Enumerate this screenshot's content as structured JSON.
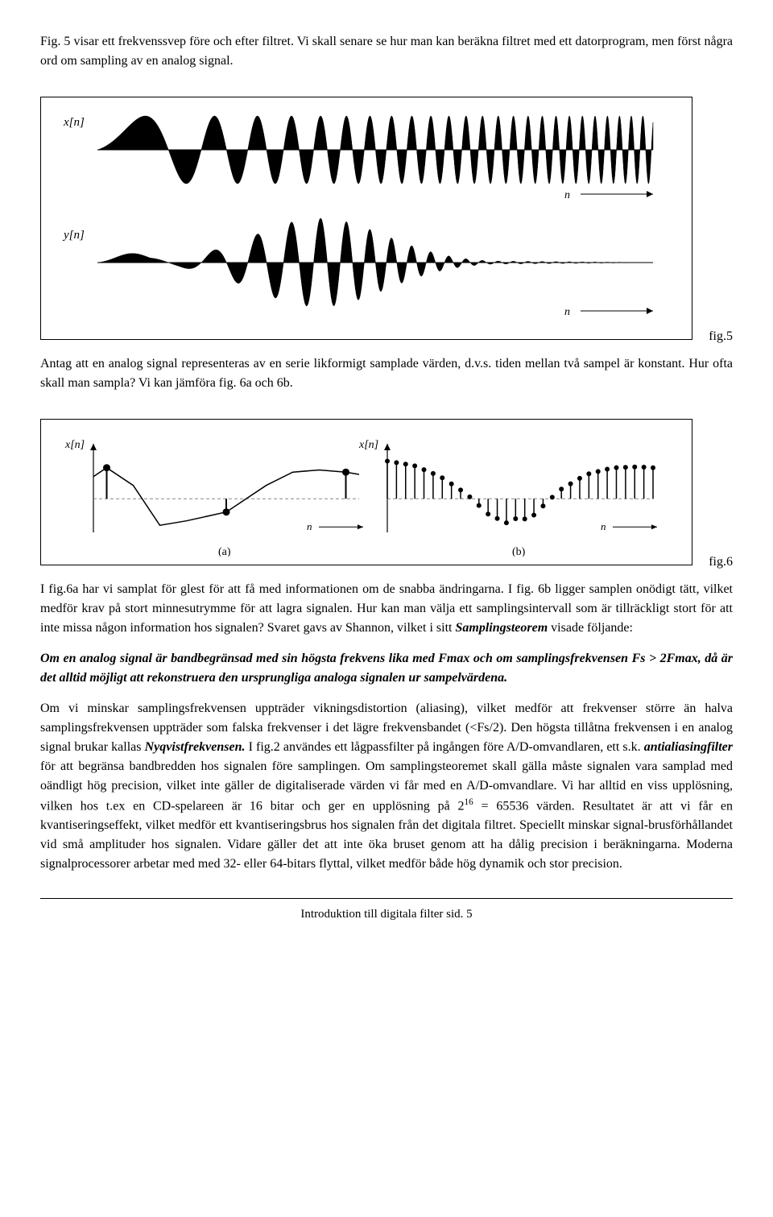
{
  "para1": "Fig. 5 visar ett frekvenssvep före och efter filtret. Vi skall senare se hur man kan beräkna filtret med ett datorprogram, men först några ord om sampling av en analog signal.",
  "fig5": {
    "label_top": "x[n]",
    "label_bottom": "y[n]",
    "axis_label": "n",
    "caption": "fig.5",
    "sweep_top": {
      "cycles": 46,
      "min_freq": 0.02,
      "max_freq": 0.45,
      "amplitude": 1.0,
      "stroke": "#000000",
      "fill": "#000000"
    },
    "sweep_bottom": {
      "cycles": 46,
      "min_freq": 0.02,
      "max_freq": 0.45,
      "envelope_center": 0.4,
      "envelope_width": 0.25,
      "stroke": "#000000",
      "fill": "#000000"
    }
  },
  "para2": "Antag att en analog signal representeras av en serie likformigt samplade värden, d.v.s. tiden mellan två sampel är konstant. Hur ofta skall man sampla? Vi kan jämföra fig. 6a och 6b.",
  "fig6": {
    "label_a": "x[n]",
    "label_b": "x[n]",
    "sub_a": "(a)",
    "sub_b": "(b)",
    "axis_label": "n",
    "caption": "fig.6",
    "panel_a": {
      "samples_x": [
        0.05,
        0.5,
        0.95
      ],
      "samples_y": [
        0.7,
        -0.3,
        0.6
      ],
      "curve": [
        [
          0,
          0.5
        ],
        [
          0.05,
          0.7
        ],
        [
          0.15,
          0.3
        ],
        [
          0.25,
          -0.6
        ],
        [
          0.35,
          -0.5
        ],
        [
          0.5,
          -0.3
        ],
        [
          0.55,
          -0.1
        ],
        [
          0.65,
          0.3
        ],
        [
          0.75,
          0.6
        ],
        [
          0.85,
          0.65
        ],
        [
          0.95,
          0.6
        ],
        [
          1,
          0.55
        ]
      ],
      "dash_color": "#888888",
      "stroke": "#000000"
    },
    "panel_b": {
      "n_samples": 30,
      "curve": [
        [
          0,
          0.85
        ],
        [
          0.1,
          0.75
        ],
        [
          0.2,
          0.5
        ],
        [
          0.3,
          0.1
        ],
        [
          0.38,
          -0.35
        ],
        [
          0.45,
          -0.55
        ],
        [
          0.5,
          -0.4
        ],
        [
          0.53,
          -0.5
        ],
        [
          0.58,
          -0.2
        ],
        [
          0.65,
          0.2
        ],
        [
          0.75,
          0.55
        ],
        [
          0.85,
          0.7
        ],
        [
          0.95,
          0.72
        ],
        [
          1,
          0.7
        ]
      ],
      "dash_color": "#888888",
      "stroke": "#000000"
    }
  },
  "para3_a": "I fig.6a har vi samplat för glest för att få med informationen om de snabba ändringarna. I fig. 6b ligger samplen onödigt tätt, vilket medför krav på stort minnesutrymme för att lagra signalen. Hur kan man välja ett samplingsintervall som är tillräckligt stort för att inte missa någon information hos signalen? Svaret gavs av Shannon, vilket i sitt ",
  "para3_b": "Samplingsteorem",
  "para3_c": " visade följande:",
  "theorem": "Om en analog signal är bandbegränsad med sin högsta frekvens lika med Fmax och om samplingsfrekvensen Fs > 2Fmax, då är det alltid möjligt att rekonstruera den ursprungliga analoga signalen ur sampelvärdena.",
  "para4_a": "Om vi minskar samplingsfrekvensen uppträder vikningsdistortion (aliasing), vilket medför att frekvenser större än halva samplingsfrekvensen uppträder som falska frekvenser i det lägre frekvensbandet (<Fs/2). Den högsta tillåtna frekvensen i en analog signal brukar kallas ",
  "para4_b": "Nyqvistfrekvensen.",
  "para4_c": " I fig.2 användes ett lågpassfilter på ingången före A/D-omvandlaren, ett s.k. ",
  "para4_d": "antialiasingfilter",
  "para4_e_pre": " för att begränsa bandbredden hos signalen före samplingen. Om samplingsteoremet skall gälla måste signalen vara samplad med oändligt hög precision, vilket inte gäller de digitaliserade värden vi får med en A/D-omvandlare. Vi har alltid en viss upplösning, vilken hos t.ex en CD-spelareen är 16 bitar och ger en upplösning på 2",
  "para4_sup": "16",
  "para4_e_post": " = 65536 värden. Resultatet är att vi får en kvantiseringseffekt, vilket medför ett kvantiseringsbrus hos signalen från det digitala filtret. Speciellt minskar signal-brusförhållandet vid små amplituder hos signalen. Vidare gäller det att inte öka bruset genom att ha dålig precision i beräkningarna. Moderna signalprocessorer arbetar med med 32- eller 64-bitars flyttal, vilket medför både hög dynamik och stor precision.",
  "footer": "Introduktion till digitala filter sid. 5"
}
